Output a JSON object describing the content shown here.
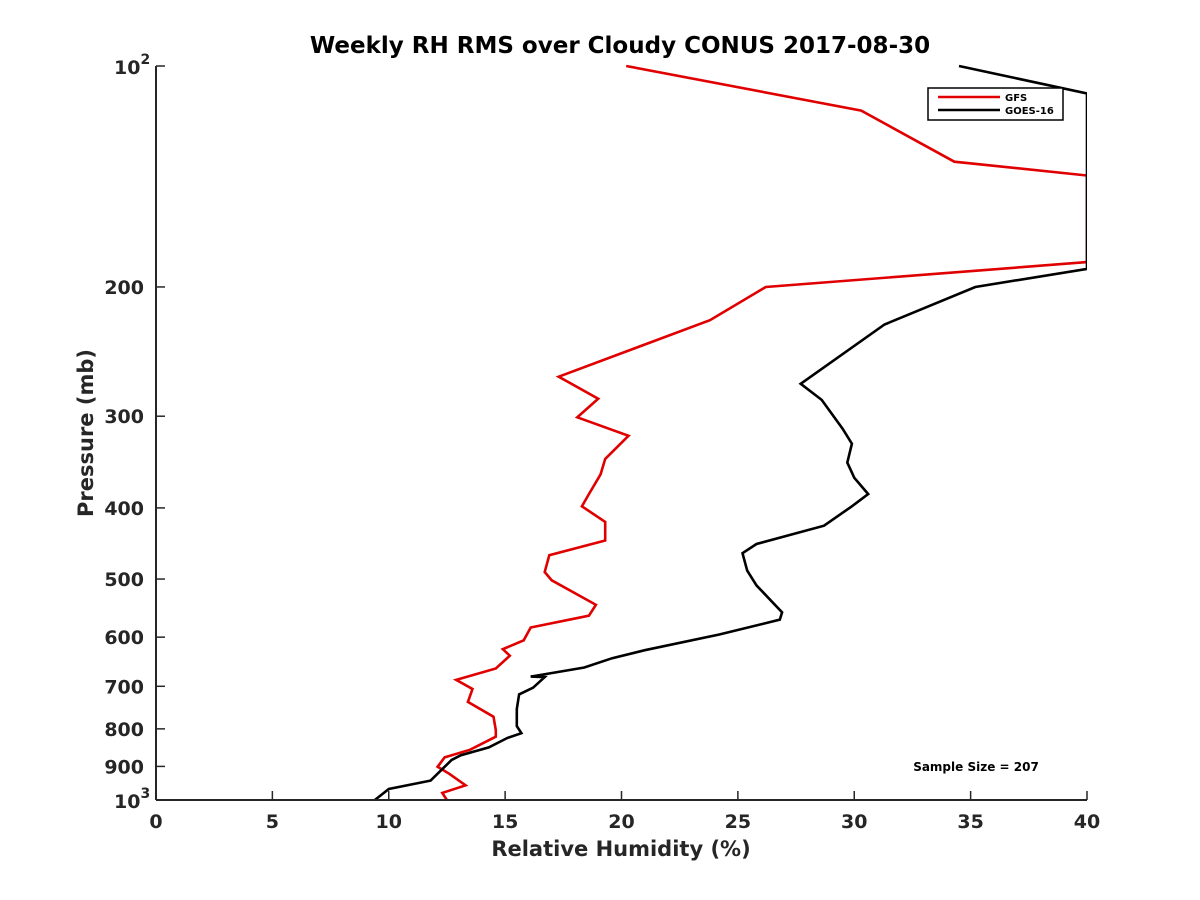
{
  "chart_data": {
    "type": "line",
    "title": "Weekly RH RMS over Cloudy CONUS 2017-08-30",
    "xlabel": "Relative Humidity (%)",
    "ylabel": "Pressure (mb)",
    "xlim": [
      0,
      40
    ],
    "ylim": [
      100,
      1000
    ],
    "y_scale": "log",
    "y_reversed": true,
    "grid": false,
    "legend_position": "top-right",
    "x_ticks": [
      0,
      5,
      10,
      15,
      20,
      25,
      30,
      35,
      40
    ],
    "y_ticks": [
      {
        "value": 100,
        "base": "10",
        "exp": "2",
        "text": ""
      },
      {
        "value": 200,
        "text": "200"
      },
      {
        "value": 300,
        "text": "300"
      },
      {
        "value": 400,
        "text": "400"
      },
      {
        "value": 500,
        "text": "500"
      },
      {
        "value": 600,
        "text": "600"
      },
      {
        "value": 700,
        "text": "700"
      },
      {
        "value": 800,
        "text": "800"
      },
      {
        "value": 900,
        "text": "900"
      },
      {
        "value": 1000,
        "base": "10",
        "exp": "3",
        "text": ""
      }
    ],
    "annotation": "Sample Size = 207",
    "series": [
      {
        "name": "GFS",
        "color": "#e00000",
        "points": [
          [
            20.2,
            100
          ],
          [
            30.3,
            115
          ],
          [
            34.3,
            135
          ],
          [
            40.0,
            141
          ],
          [
            40.0,
            185
          ],
          [
            26.2,
            200
          ],
          [
            23.8,
            222
          ],
          [
            17.3,
            265
          ],
          [
            19.0,
            284
          ],
          [
            18.1,
            301
          ],
          [
            20.3,
            319
          ],
          [
            19.3,
            343
          ],
          [
            19.1,
            360
          ],
          [
            18.6,
            383
          ],
          [
            18.3,
            398
          ],
          [
            19.3,
            418
          ],
          [
            19.3,
            443
          ],
          [
            16.9,
            464
          ],
          [
            16.7,
            489
          ],
          [
            17.0,
            502
          ],
          [
            18.9,
            542
          ],
          [
            18.6,
            561
          ],
          [
            16.1,
            582
          ],
          [
            15.8,
            606
          ],
          [
            14.9,
            623
          ],
          [
            15.2,
            636
          ],
          [
            14.6,
            662
          ],
          [
            12.9,
            686
          ],
          [
            13.6,
            706
          ],
          [
            13.4,
            735
          ],
          [
            14.5,
            770
          ],
          [
            14.6,
            803
          ],
          [
            14.6,
            820
          ],
          [
            13.5,
            854
          ],
          [
            12.4,
            875
          ],
          [
            12.1,
            901
          ],
          [
            12.6,
            921
          ],
          [
            13.3,
            955
          ],
          [
            12.3,
            978
          ],
          [
            12.5,
            1000
          ]
        ]
      },
      {
        "name": "GOES-16",
        "color": "#000000",
        "points": [
          [
            34.5,
            100
          ],
          [
            40.0,
            109
          ],
          [
            40.0,
            189
          ],
          [
            35.2,
            200
          ],
          [
            31.3,
            225
          ],
          [
            27.7,
            271
          ],
          [
            28.6,
            285
          ],
          [
            29.5,
            312
          ],
          [
            29.9,
            327
          ],
          [
            29.7,
            347
          ],
          [
            30.0,
            364
          ],
          [
            30.6,
            383
          ],
          [
            29.9,
            398
          ],
          [
            28.7,
            423
          ],
          [
            25.8,
            448
          ],
          [
            25.2,
            461
          ],
          [
            25.4,
            487
          ],
          [
            25.8,
            510
          ],
          [
            26.9,
            555
          ],
          [
            26.8,
            568
          ],
          [
            24.2,
            595
          ],
          [
            21.0,
            625
          ],
          [
            19.6,
            641
          ],
          [
            18.4,
            660
          ],
          [
            16.1,
            679
          ],
          [
            16.7,
            680
          ],
          [
            16.2,
            703
          ],
          [
            15.6,
            718
          ],
          [
            15.5,
            752
          ],
          [
            15.5,
            793
          ],
          [
            15.7,
            811
          ],
          [
            15.1,
            823
          ],
          [
            14.3,
            848
          ],
          [
            13.1,
            869
          ],
          [
            12.7,
            882
          ],
          [
            12.4,
            901
          ],
          [
            11.8,
            941
          ],
          [
            10.0,
            966
          ],
          [
            9.4,
            1000
          ]
        ]
      }
    ]
  }
}
